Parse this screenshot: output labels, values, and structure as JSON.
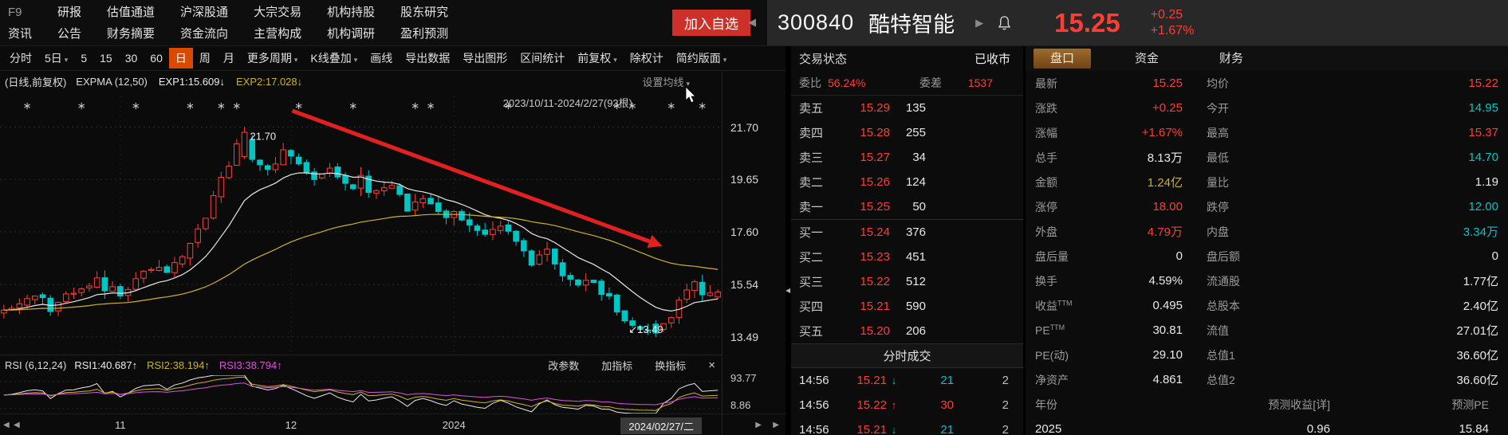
{
  "colors": {
    "up": "#fc3e37",
    "down": "#00c5c5",
    "yellow": "#cdb22b",
    "magenta": "#d957d9",
    "accent_orange": "#d84a00",
    "add_button": "#cd3028",
    "tab_active": "#96622c"
  },
  "ui": {
    "caret": "▾",
    "arrow_left": "◀",
    "arrow_right": "▶",
    "up_arrow": "↑",
    "down_arrow": "↓"
  },
  "menu": {
    "rows": [
      [
        "F9",
        "研报",
        "估值通道",
        "沪深股通",
        "大宗交易",
        "机构持股",
        "股东研究"
      ],
      [
        "资讯",
        "公告",
        "财务摘要",
        "资金流向",
        "主营构成",
        "机构调研",
        "盈利预测"
      ]
    ]
  },
  "header": {
    "add_watchlist": "加入自选",
    "prev_arrow": "◀",
    "stock_code": "300840",
    "stock_name": "酷特智能",
    "next_arrow": "▶",
    "price": "15.25",
    "change": "+0.25",
    "change_pct": "+1.67%"
  },
  "toolbar": {
    "items": [
      {
        "label": "分时"
      },
      {
        "label": "5日",
        "caret": true
      },
      {
        "label": "5"
      },
      {
        "label": "15"
      },
      {
        "label": "30"
      },
      {
        "label": "60"
      },
      {
        "label": "日",
        "active": true
      },
      {
        "label": "周"
      },
      {
        "label": "月"
      },
      {
        "label": "更多周期",
        "caret": true
      },
      {
        "label": "K线叠加",
        "caret": true
      },
      {
        "label": "画线"
      },
      {
        "label": "导出数据"
      },
      {
        "label": "导出图形"
      },
      {
        "label": "区间统计"
      },
      {
        "label": "前复权",
        "caret": true
      },
      {
        "label": "除权计"
      },
      {
        "label": "简约版面",
        "caret": true
      }
    ]
  },
  "chart": {
    "title": "(日线,前复权)",
    "indicator": "EXPMA (12,50)",
    "exp1_label": "EXP1:15.609↓",
    "exp2_label": "EXP2:17.028↓",
    "ma_settings": "设置均线",
    "range_label": "2023/10/11-2024/2/27(93根)",
    "peak_label": "21.70",
    "low_label": "↙13.49",
    "y_labels": [
      "21.70",
      "19.65",
      "17.60",
      "15.54",
      "13.49"
    ],
    "x_ticks": [
      {
        "label": "11",
        "index": 15
      },
      {
        "label": "12",
        "index": 37
      },
      {
        "label": "2024",
        "index": 58
      }
    ],
    "date_box": "2024/02/27/二"
  },
  "rsi": {
    "title": "RSI (6,12,24)",
    "v1": "RSI1:40.687↑",
    "v2": "RSI2:38.194↑",
    "v3": "RSI3:38.794↑",
    "buttons": [
      "改参数",
      "加指标",
      "换指标"
    ],
    "close": "×",
    "y_top": "93.77",
    "y_bottom": "8.86"
  },
  "chart_data": {
    "type": "candlestick",
    "bars": 93,
    "date_start": "2023/10/11",
    "date_end": "2024/2/27",
    "price_grid": [
      21.7,
      19.65,
      17.6,
      15.54,
      13.49
    ],
    "peak": {
      "index": 31,
      "price": 21.7
    },
    "low": {
      "index": 84,
      "price": 13.49
    },
    "last_close": 15.25,
    "close_anchors": [
      [
        0,
        14.4
      ],
      [
        3,
        15.0
      ],
      [
        6,
        14.7
      ],
      [
        9,
        15.3
      ],
      [
        12,
        15.6
      ],
      [
        15,
        15.1
      ],
      [
        18,
        16.2
      ],
      [
        21,
        15.9
      ],
      [
        24,
        17.0
      ],
      [
        26,
        18.2
      ],
      [
        28,
        19.6
      ],
      [
        30,
        21.0
      ],
      [
        31,
        21.45
      ],
      [
        32,
        20.6
      ],
      [
        34,
        19.9
      ],
      [
        36,
        20.85
      ],
      [
        38,
        20.3
      ],
      [
        40,
        19.5
      ],
      [
        42,
        20.15
      ],
      [
        44,
        19.3
      ],
      [
        46,
        19.7
      ],
      [
        48,
        19.0
      ],
      [
        50,
        19.4
      ],
      [
        52,
        18.6
      ],
      [
        54,
        18.9
      ],
      [
        56,
        18.2
      ],
      [
        58,
        18.5
      ],
      [
        60,
        17.8
      ],
      [
        62,
        17.4
      ],
      [
        64,
        17.75
      ],
      [
        66,
        17.1
      ],
      [
        68,
        16.5
      ],
      [
        70,
        16.8
      ],
      [
        72,
        16.1
      ],
      [
        74,
        15.5
      ],
      [
        76,
        15.8
      ],
      [
        78,
        14.9
      ],
      [
        80,
        14.2
      ],
      [
        82,
        13.8
      ],
      [
        84,
        13.6
      ],
      [
        85,
        14.1
      ],
      [
        86,
        14.45
      ],
      [
        87,
        14.9
      ],
      [
        88,
        15.4
      ],
      [
        89,
        15.7
      ],
      [
        90,
        15.1
      ],
      [
        91,
        15.0
      ],
      [
        92,
        15.25
      ]
    ],
    "event_marker_indices": [
      3,
      10,
      17,
      24,
      28,
      30,
      38,
      45,
      53,
      55,
      65,
      79,
      81,
      86,
      90
    ],
    "overlays": [
      {
        "name": "EXP1",
        "period": 12,
        "last": 15.609,
        "color": "white"
      },
      {
        "name": "EXP2",
        "period": 50,
        "last": 17.028,
        "color": "yellow"
      }
    ],
    "secondary": {
      "name": "RSI",
      "periods": [
        6,
        12,
        24
      ],
      "last": [
        40.687,
        38.194,
        38.794
      ],
      "range": [
        8.86,
        93.77
      ]
    }
  },
  "orderbook": {
    "status_label": "交易状态",
    "status_value": "已收市",
    "ratio_label": "委比",
    "ratio_value": "56.24%",
    "diff_label": "委差",
    "diff_value": "1537",
    "asks": [
      {
        "label": "卖五",
        "price": "15.29",
        "vol": "135"
      },
      {
        "label": "卖四",
        "price": "15.28",
        "vol": "255"
      },
      {
        "label": "卖三",
        "price": "15.27",
        "vol": "34"
      },
      {
        "label": "卖二",
        "price": "15.26",
        "vol": "124"
      },
      {
        "label": "卖一",
        "price": "15.25",
        "vol": "50"
      }
    ],
    "bids": [
      {
        "label": "买一",
        "price": "15.24",
        "vol": "376"
      },
      {
        "label": "买二",
        "price": "15.23",
        "vol": "451"
      },
      {
        "label": "买三",
        "price": "15.22",
        "vol": "512"
      },
      {
        "label": "买四",
        "price": "15.21",
        "vol": "590"
      },
      {
        "label": "买五",
        "price": "15.20",
        "vol": "206"
      }
    ],
    "tape_title": "分时成交",
    "tape": [
      {
        "time": "14:56",
        "price": "15.21",
        "dir": "down",
        "qty": "21",
        "n": "2"
      },
      {
        "time": "14:56",
        "price": "15.22",
        "dir": "up",
        "qty": "30",
        "n": "2"
      },
      {
        "time": "14:56",
        "price": "15.21",
        "dir": "down",
        "qty": "21",
        "n": "2"
      }
    ]
  },
  "stats": {
    "tabs": [
      {
        "label": "盘口",
        "active": true
      },
      {
        "label": "资金"
      },
      {
        "label": "财务"
      }
    ],
    "rows": [
      [
        {
          "l": "最新",
          "v": "15.25",
          "c": "up"
        },
        {
          "l": "均价",
          "v": "15.22",
          "c": "up"
        }
      ],
      [
        {
          "l": "涨跌",
          "v": "+0.25",
          "c": "up"
        },
        {
          "l": "今开",
          "v": "14.95",
          "c": "down"
        }
      ],
      [
        {
          "l": "涨幅",
          "v": "+1.67%",
          "c": "up"
        },
        {
          "l": "最高",
          "v": "15.37",
          "c": "up"
        }
      ],
      [
        {
          "l": "总手",
          "v": "8.13万",
          "c": "white"
        },
        {
          "l": "最低",
          "v": "14.70",
          "c": "down"
        }
      ],
      [
        {
          "l": "金额",
          "v": "1.24亿",
          "c": "yellow"
        },
        {
          "l": "量比",
          "v": "1.19",
          "c": "white"
        }
      ],
      [
        {
          "l": "涨停",
          "v": "18.00",
          "c": "up"
        },
        {
          "l": "跌停",
          "v": "12.00",
          "c": "down"
        }
      ],
      [
        {
          "l": "外盘",
          "v": "4.79万",
          "c": "up"
        },
        {
          "l": "内盘",
          "v": "3.34万",
          "c": "down"
        }
      ],
      [
        {
          "l": "盘后量",
          "v": "0",
          "c": "white"
        },
        {
          "l": "盘后额",
          "v": "0",
          "c": "white"
        }
      ],
      [
        {
          "l": "换手",
          "v": "4.59%",
          "c": "white"
        },
        {
          "l": "流通股",
          "v": "1.77亿",
          "c": "white"
        }
      ],
      [
        {
          "l": "收益",
          "sup": "TTM",
          "v": "0.495",
          "c": "white"
        },
        {
          "l": "总股本",
          "v": "2.40亿",
          "c": "white"
        }
      ],
      [
        {
          "l": "PE",
          "sup": "TTM",
          "v": "30.81",
          "c": "white"
        },
        {
          "l": "流值",
          "v": "27.01亿",
          "c": "white"
        }
      ],
      [
        {
          "l": "PE(动)",
          "v": "29.10",
          "c": "white"
        },
        {
          "l": "总值1",
          "v": "36.60亿",
          "c": "white"
        }
      ],
      [
        {
          "l": "净资产",
          "v": "4.861",
          "c": "white"
        },
        {
          "l": "总值2",
          "v": "36.60亿",
          "c": "white"
        }
      ]
    ],
    "forecast_header": [
      "年份",
      "预测收益[详]",
      "预测PE"
    ],
    "forecast_rows": [
      [
        "2025",
        "0.96",
        "15.84"
      ]
    ]
  }
}
